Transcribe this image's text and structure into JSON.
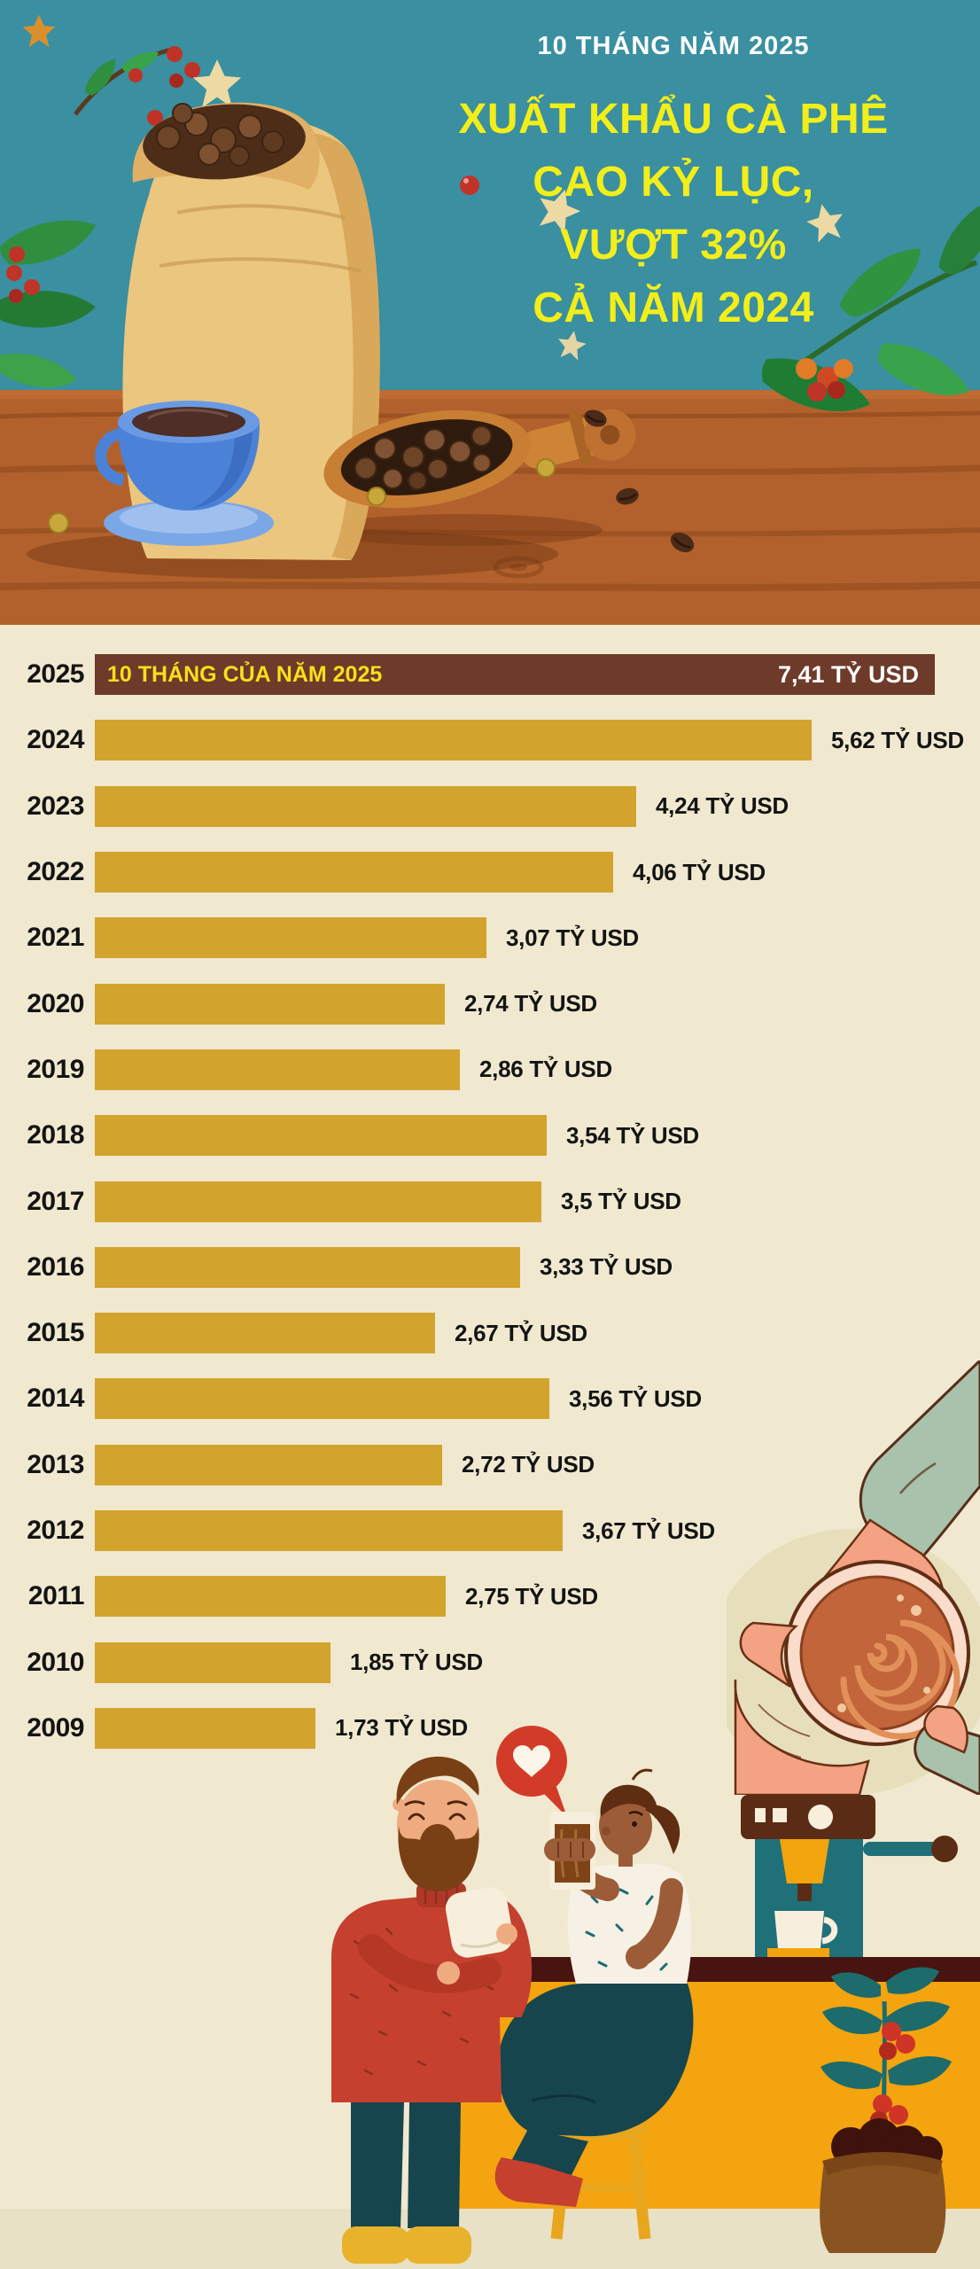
{
  "header": {
    "kicker": "10 THÁNG NĂM 2025",
    "title_lines": [
      "XUẤT KHẨU CÀ PHÊ",
      "CAO KỶ LỤC,",
      "VƯỢT 32%",
      "CẢ NĂM 2024"
    ]
  },
  "chart_data": {
    "type": "bar",
    "orientation": "horizontal",
    "unit": "tỷ USD",
    "categories": [
      "2025",
      "2024",
      "2023",
      "2022",
      "2021",
      "2020",
      "2019",
      "2018",
      "2017",
      "2016",
      "2015",
      "2014",
      "2013",
      "2012",
      "2011",
      "2010",
      "2009"
    ],
    "values": [
      7.41,
      5.62,
      4.24,
      4.06,
      3.07,
      2.74,
      2.86,
      3.54,
      3.5,
      3.33,
      2.67,
      3.56,
      2.72,
      3.67,
      2.75,
      1.85,
      1.73
    ],
    "value_labels": [
      "7,41 TỶ USD",
      "5,62 TỶ USD",
      "4,24 TỶ USD",
      "4,06 TỶ USD",
      "3,07 TỶ USD",
      "2,74 TỶ USD",
      "2,86 TỶ USD",
      "3,54 TỶ USD",
      "3,5 TỶ USD",
      "3,33 TỶ USD",
      "2,67 TỶ USD",
      "3,56 TỶ USD",
      "2,72 TỶ USD",
      "3,67 TỶ USD",
      "2,75 TỶ USD",
      "1,85 TỶ USD",
      "1,73 TỶ USD"
    ],
    "highlight_year": "2025",
    "highlight_note": "10 THÁNG CỦA NĂM 2025",
    "legend": "none",
    "grid": false,
    "colors": {
      "bar": "#d2a32d",
      "highlight_bar": "#6e3a2a",
      "highlight_note_text": "#f8df1b",
      "highlight_value_text": "#ffffff",
      "label_text": "#141414",
      "chart_background": "#f0e9d0",
      "header_background": "#3a8fa0",
      "title_text": "#f2ee1a",
      "kicker_text": "#ffffff"
    }
  },
  "illustrations": {
    "header": [
      "coffee-sack-illustration",
      "coffee-cup-illustration",
      "bean-scoop-illustration",
      "coffee-branch-illustration",
      "star-anise-icon",
      "wood-table-illustration"
    ],
    "middle": [
      "hands-holding-cup-illustration",
      "sugar-cubes-illustration",
      "coffee-shelf-illustration"
    ],
    "bottom": [
      "heart-icon",
      "man-illustration",
      "woman-illustration",
      "espresso-machine-illustration",
      "coffee-plant-illustration",
      "stool-illustration",
      "counter-illustration"
    ]
  }
}
